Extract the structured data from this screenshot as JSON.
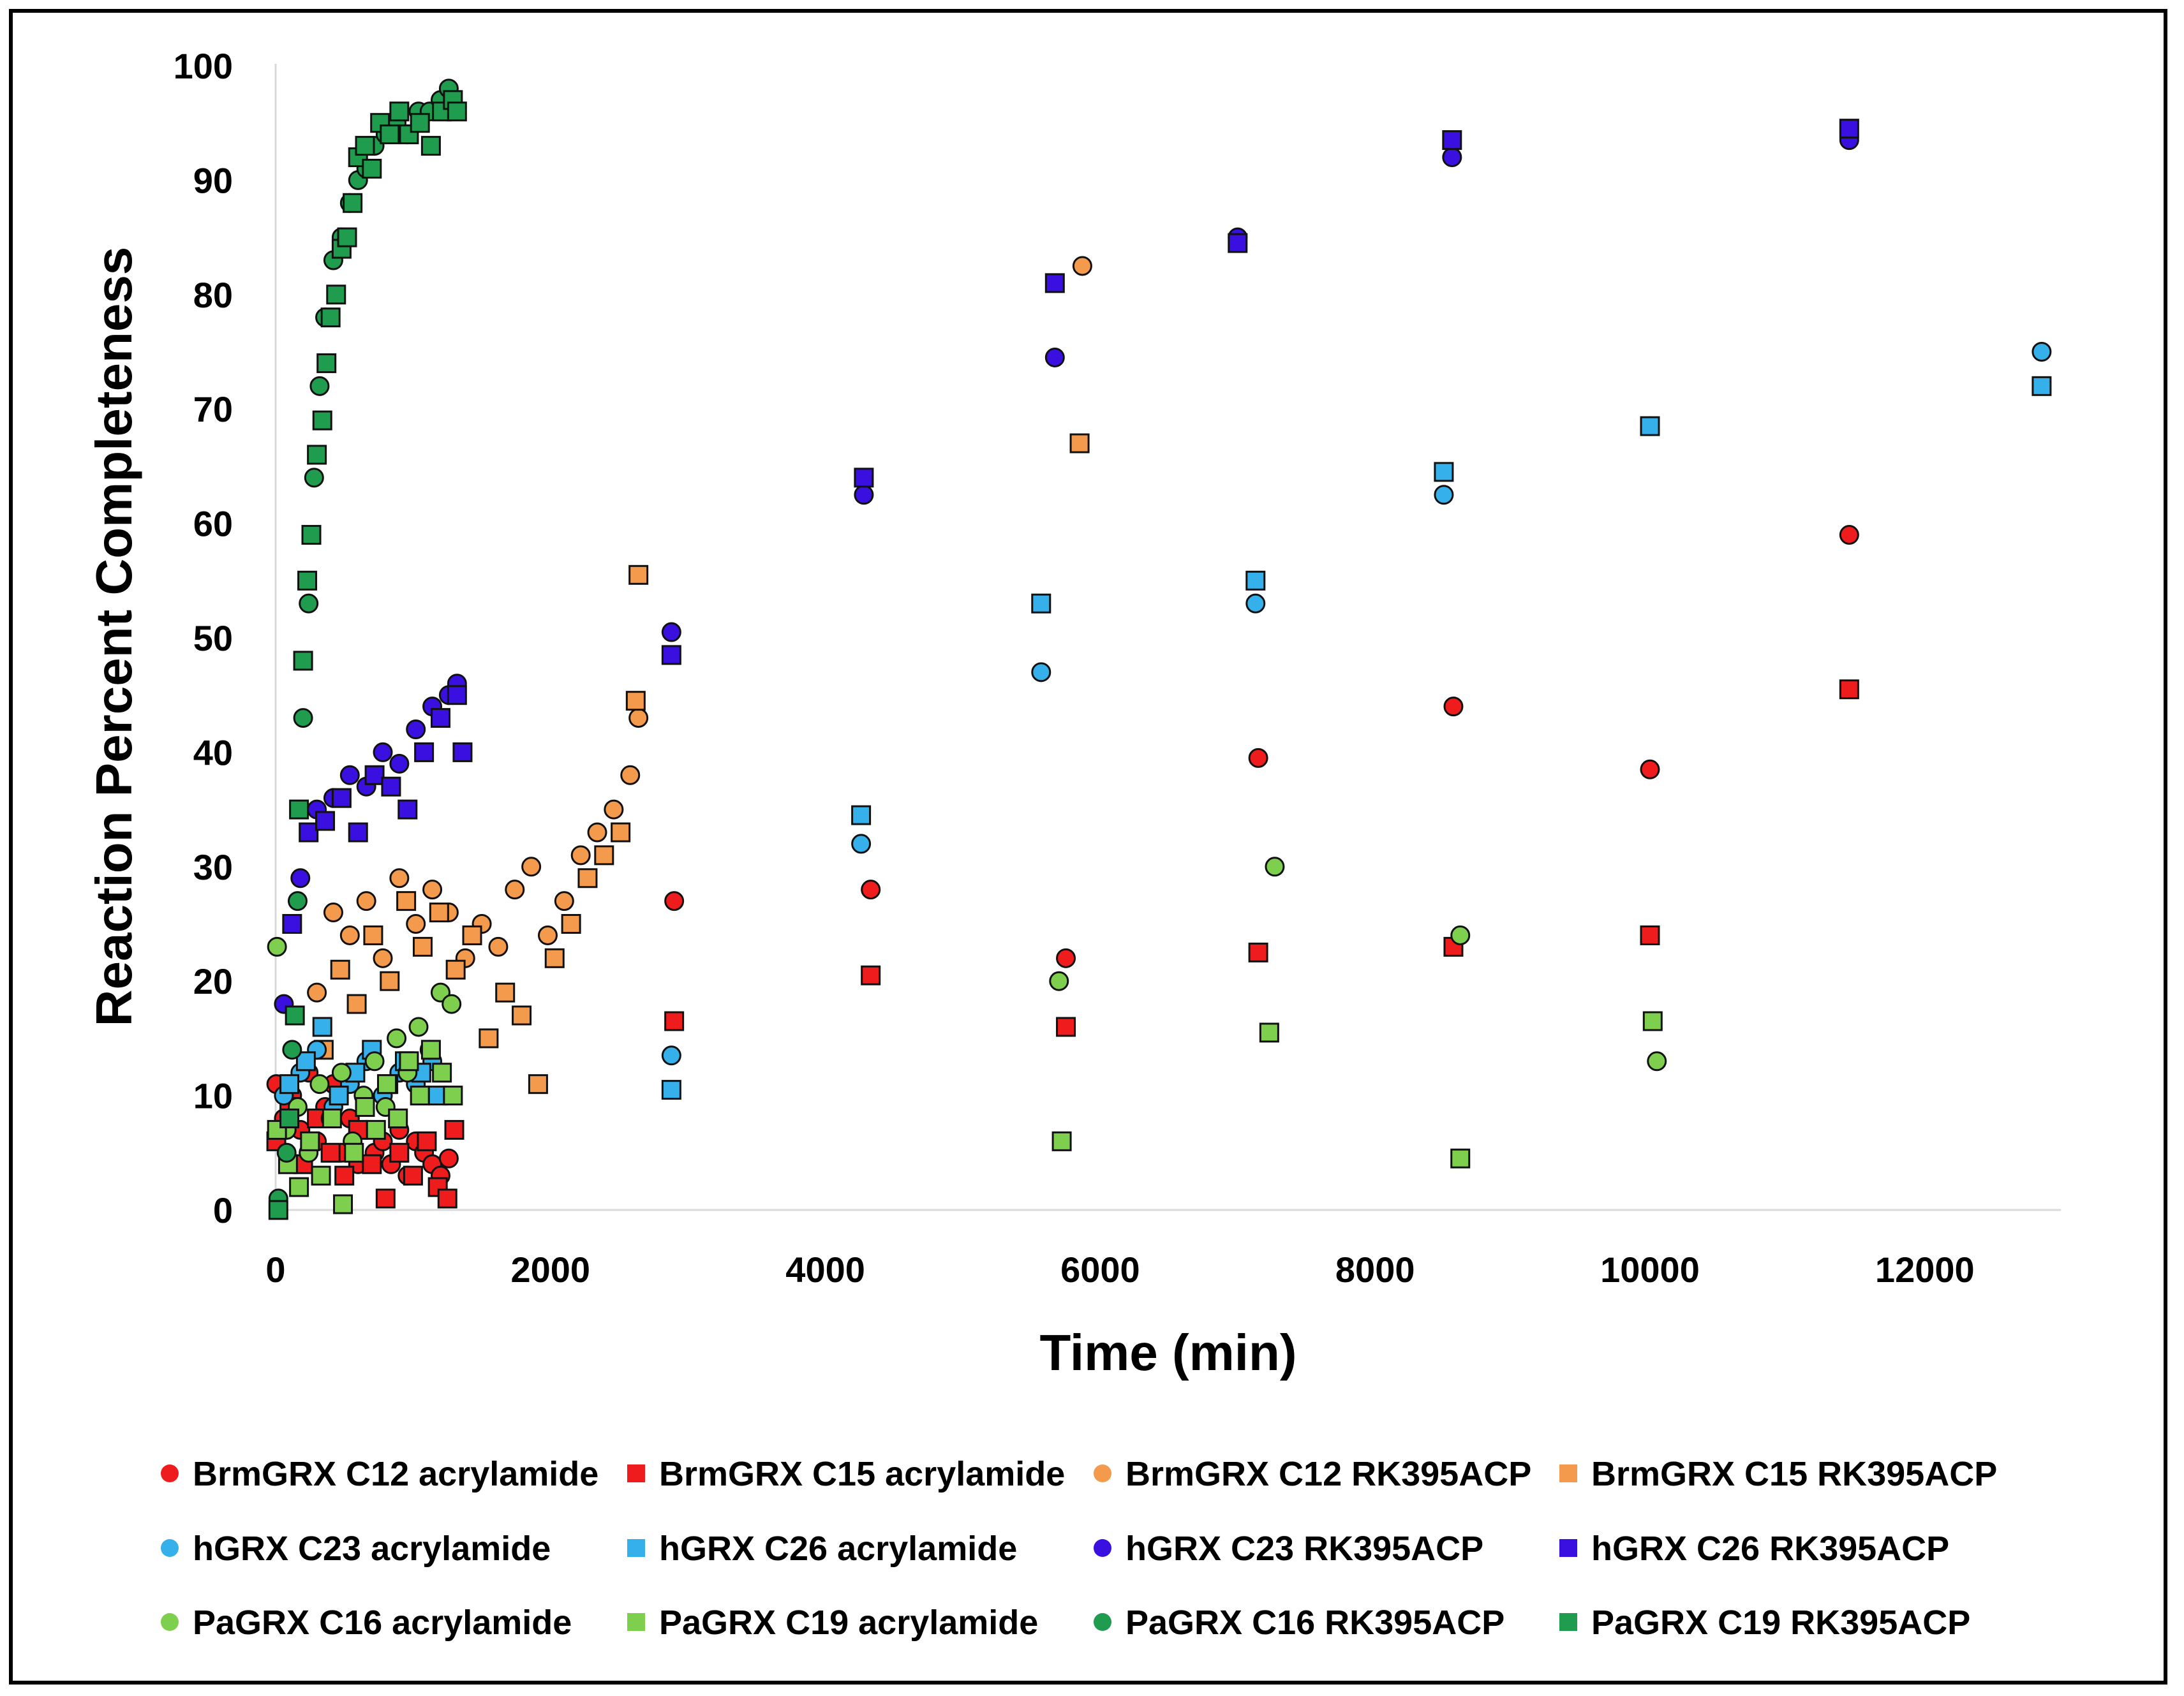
{
  "chart_data": {
    "type": "scatter",
    "title": "",
    "xlabel": "Time (min)",
    "ylabel": "Reaction Percent Completeness",
    "xlim": [
      0,
      13000
    ],
    "ylim": [
      0,
      100
    ],
    "xticks": [
      0,
      2000,
      4000,
      6000,
      8000,
      10000,
      12000
    ],
    "yticks": [
      0,
      10,
      20,
      30,
      40,
      50,
      60,
      70,
      80,
      90,
      100
    ],
    "xtick_labels": [
      "0",
      "2000",
      "4000",
      "6000",
      "8000",
      "10000",
      "12000"
    ],
    "ytick_labels": [
      "0",
      "10",
      "20",
      "30",
      "40",
      "50",
      "60",
      "70",
      "80",
      "90",
      "100"
    ],
    "grid": false,
    "legend_position": "bottom",
    "series": [
      {
        "name": "BrmGRX C12 acrylamide",
        "marker": "circle",
        "color": "#ee1c1c",
        "points": [
          [
            5,
            11
          ],
          [
            60,
            8
          ],
          [
            120,
            10
          ],
          [
            180,
            7
          ],
          [
            240,
            12
          ],
          [
            300,
            6
          ],
          [
            360,
            9
          ],
          [
            420,
            11
          ],
          [
            480,
            5
          ],
          [
            540,
            8
          ],
          [
            600,
            4
          ],
          [
            660,
            7
          ],
          [
            720,
            5
          ],
          [
            780,
            6
          ],
          [
            840,
            4
          ],
          [
            900,
            7
          ],
          [
            960,
            3
          ],
          [
            1020,
            6
          ],
          [
            1080,
            5
          ],
          [
            1140,
            4
          ],
          [
            1200,
            3
          ],
          [
            1260,
            4.5
          ],
          [
            2900,
            27
          ],
          [
            4330,
            28
          ],
          [
            5750,
            22
          ],
          [
            7150,
            39.5
          ],
          [
            8570,
            44
          ],
          [
            10000,
            38.5
          ],
          [
            11450,
            59
          ]
        ]
      },
      {
        "name": "BrmGRX C15 acrylamide",
        "marker": "square",
        "color": "#ee1c1c",
        "points": [
          [
            5,
            6
          ],
          [
            100,
            9
          ],
          [
            200,
            4
          ],
          [
            300,
            8
          ],
          [
            400,
            5
          ],
          [
            500,
            3
          ],
          [
            600,
            7
          ],
          [
            700,
            4
          ],
          [
            800,
            1
          ],
          [
            900,
            5
          ],
          [
            1000,
            3
          ],
          [
            1100,
            6
          ],
          [
            1180,
            2
          ],
          [
            1250,
            1
          ],
          [
            1300,
            7
          ],
          [
            2900,
            16.5
          ],
          [
            4330,
            20.5
          ],
          [
            5750,
            16
          ],
          [
            7150,
            22.5
          ],
          [
            8570,
            23
          ],
          [
            10000,
            24
          ],
          [
            11450,
            45.5
          ]
        ]
      },
      {
        "name": "BrmGRX C12 RK395ACP",
        "marker": "circle",
        "color": "#f39a4c",
        "points": [
          [
            300,
            19
          ],
          [
            420,
            26
          ],
          [
            540,
            24
          ],
          [
            660,
            27
          ],
          [
            780,
            22
          ],
          [
            900,
            29
          ],
          [
            1020,
            25
          ],
          [
            1140,
            28
          ],
          [
            1260,
            26
          ],
          [
            1380,
            22
          ],
          [
            1500,
            25
          ],
          [
            1620,
            23
          ],
          [
            1740,
            28
          ],
          [
            1860,
            30
          ],
          [
            1980,
            24
          ],
          [
            2100,
            27
          ],
          [
            2220,
            31
          ],
          [
            2340,
            33
          ],
          [
            2460,
            35
          ],
          [
            2580,
            38
          ],
          [
            2640,
            43
          ],
          [
            5870,
            82.5
          ]
        ]
      },
      {
        "name": "BrmGRX C15 RK395ACP",
        "marker": "square",
        "color": "#f39a4c",
        "points": [
          [
            350,
            14
          ],
          [
            470,
            21
          ],
          [
            590,
            18
          ],
          [
            710,
            24
          ],
          [
            830,
            20
          ],
          [
            950,
            27
          ],
          [
            1070,
            23
          ],
          [
            1190,
            26
          ],
          [
            1310,
            21
          ],
          [
            1430,
            24
          ],
          [
            1550,
            15
          ],
          [
            1670,
            19
          ],
          [
            1790,
            17
          ],
          [
            1910,
            11
          ],
          [
            2030,
            22
          ],
          [
            2150,
            25
          ],
          [
            2270,
            29
          ],
          [
            2390,
            31
          ],
          [
            2510,
            33
          ],
          [
            2620,
            44.5
          ],
          [
            2640,
            55.5
          ],
          [
            5850,
            67
          ]
        ]
      },
      {
        "name": "hGRX C23 acrylamide",
        "marker": "circle",
        "color": "#35b0ea",
        "points": [
          [
            60,
            10
          ],
          [
            180,
            12
          ],
          [
            300,
            14
          ],
          [
            420,
            9
          ],
          [
            540,
            11
          ],
          [
            660,
            13
          ],
          [
            780,
            10
          ],
          [
            900,
            12
          ],
          [
            1020,
            11
          ],
          [
            1140,
            13
          ],
          [
            2880,
            13.5
          ],
          [
            4260,
            32
          ],
          [
            5570,
            47
          ],
          [
            7130,
            53
          ],
          [
            8500,
            62.5
          ],
          [
            10000,
            68.5
          ],
          [
            12850,
            75
          ]
        ]
      },
      {
        "name": "hGRX C26 acrylamide",
        "marker": "square",
        "color": "#35b0ea",
        "points": [
          [
            100,
            11
          ],
          [
            220,
            13
          ],
          [
            340,
            16
          ],
          [
            460,
            10
          ],
          [
            580,
            12
          ],
          [
            700,
            14
          ],
          [
            820,
            11
          ],
          [
            940,
            13
          ],
          [
            1060,
            12
          ],
          [
            1180,
            10
          ],
          [
            2880,
            10.5
          ],
          [
            4260,
            34.5
          ],
          [
            5570,
            53
          ],
          [
            7130,
            55
          ],
          [
            8500,
            64.5
          ],
          [
            10000,
            68.5
          ],
          [
            12850,
            72
          ]
        ]
      },
      {
        "name": "hGRX C23 RK395ACP",
        "marker": "circle",
        "color": "#3a10e0",
        "points": [
          [
            60,
            18
          ],
          [
            180,
            29
          ],
          [
            300,
            35
          ],
          [
            420,
            36
          ],
          [
            540,
            38
          ],
          [
            660,
            37
          ],
          [
            780,
            40
          ],
          [
            900,
            39
          ],
          [
            1020,
            42
          ],
          [
            1140,
            44
          ],
          [
            1260,
            45
          ],
          [
            1320,
            46
          ],
          [
            2880,
            50.5
          ],
          [
            4280,
            62.5
          ],
          [
            5670,
            74.5
          ],
          [
            7000,
            85
          ],
          [
            8560,
            92
          ],
          [
            11450,
            93.5
          ]
        ]
      },
      {
        "name": "hGRX C26 RK395ACP",
        "marker": "square",
        "color": "#3a10e0",
        "points": [
          [
            120,
            25
          ],
          [
            240,
            33
          ],
          [
            360,
            34
          ],
          [
            480,
            36
          ],
          [
            600,
            33
          ],
          [
            720,
            38
          ],
          [
            840,
            37
          ],
          [
            960,
            35
          ],
          [
            1080,
            40
          ],
          [
            1200,
            43
          ],
          [
            1320,
            45
          ],
          [
            1360,
            40
          ],
          [
            2880,
            48.5
          ],
          [
            4280,
            64
          ],
          [
            5670,
            81
          ],
          [
            7000,
            84.5
          ],
          [
            8560,
            93.5
          ],
          [
            11450,
            94.5
          ]
        ]
      },
      {
        "name": "PaGRX C16 acrylamide",
        "marker": "circle",
        "color": "#7fcf4e",
        "points": [
          [
            10,
            23
          ],
          [
            80,
            7
          ],
          [
            160,
            9
          ],
          [
            240,
            5
          ],
          [
            320,
            11
          ],
          [
            400,
            8
          ],
          [
            480,
            12
          ],
          [
            560,
            6
          ],
          [
            640,
            10
          ],
          [
            720,
            13
          ],
          [
            800,
            9
          ],
          [
            880,
            15
          ],
          [
            960,
            12
          ],
          [
            1040,
            16
          ],
          [
            1120,
            14
          ],
          [
            1200,
            19
          ],
          [
            1280,
            18
          ],
          [
            7270,
            30
          ],
          [
            8620,
            24
          ],
          [
            10050,
            13
          ],
          [
            5700,
            20
          ]
        ]
      },
      {
        "name": "PaGRX C19 acrylamide",
        "marker": "square",
        "color": "#7fcf4e",
        "points": [
          [
            10,
            7
          ],
          [
            90,
            4
          ],
          [
            170,
            2
          ],
          [
            250,
            6
          ],
          [
            330,
            3
          ],
          [
            410,
            8
          ],
          [
            490,
            0.5
          ],
          [
            570,
            5
          ],
          [
            650,
            9
          ],
          [
            730,
            7
          ],
          [
            810,
            11
          ],
          [
            890,
            8
          ],
          [
            970,
            13
          ],
          [
            1050,
            10
          ],
          [
            1130,
            14
          ],
          [
            1210,
            12
          ],
          [
            1290,
            10
          ],
          [
            5720,
            6
          ],
          [
            7230,
            15.5
          ],
          [
            8620,
            4.5
          ],
          [
            10020,
            16.5
          ]
        ]
      },
      {
        "name": "PaGRX C16 RK395ACP",
        "marker": "circle",
        "color": "#1f9c4e",
        "points": [
          [
            20,
            1
          ],
          [
            80,
            5
          ],
          [
            120,
            14
          ],
          [
            160,
            27
          ],
          [
            200,
            43
          ],
          [
            240,
            53
          ],
          [
            280,
            64
          ],
          [
            320,
            72
          ],
          [
            360,
            78
          ],
          [
            420,
            83
          ],
          [
            480,
            85
          ],
          [
            540,
            88
          ],
          [
            600,
            90
          ],
          [
            660,
            91
          ],
          [
            720,
            93
          ],
          [
            800,
            94
          ],
          [
            880,
            95
          ],
          [
            960,
            94
          ],
          [
            1040,
            96
          ],
          [
            1120,
            96
          ],
          [
            1200,
            97
          ],
          [
            1260,
            98
          ]
        ]
      },
      {
        "name": "PaGRX C19 RK395ACP",
        "marker": "square",
        "color": "#1f9c4e",
        "points": [
          [
            20,
            0
          ],
          [
            100,
            8
          ],
          [
            140,
            17
          ],
          [
            170,
            35
          ],
          [
            200,
            48
          ],
          [
            230,
            55
          ],
          [
            260,
            59
          ],
          [
            300,
            66
          ],
          [
            340,
            69
          ],
          [
            370,
            74
          ],
          [
            400,
            78
          ],
          [
            440,
            80
          ],
          [
            480,
            84
          ],
          [
            520,
            85
          ],
          [
            560,
            88
          ],
          [
            600,
            92
          ],
          [
            650,
            93
          ],
          [
            700,
            91
          ],
          [
            760,
            95
          ],
          [
            830,
            94
          ],
          [
            900,
            96
          ],
          [
            970,
            94
          ],
          [
            1050,
            95
          ],
          [
            1130,
            93
          ],
          [
            1210,
            96
          ],
          [
            1290,
            97
          ],
          [
            1320,
            96
          ]
        ]
      }
    ]
  }
}
